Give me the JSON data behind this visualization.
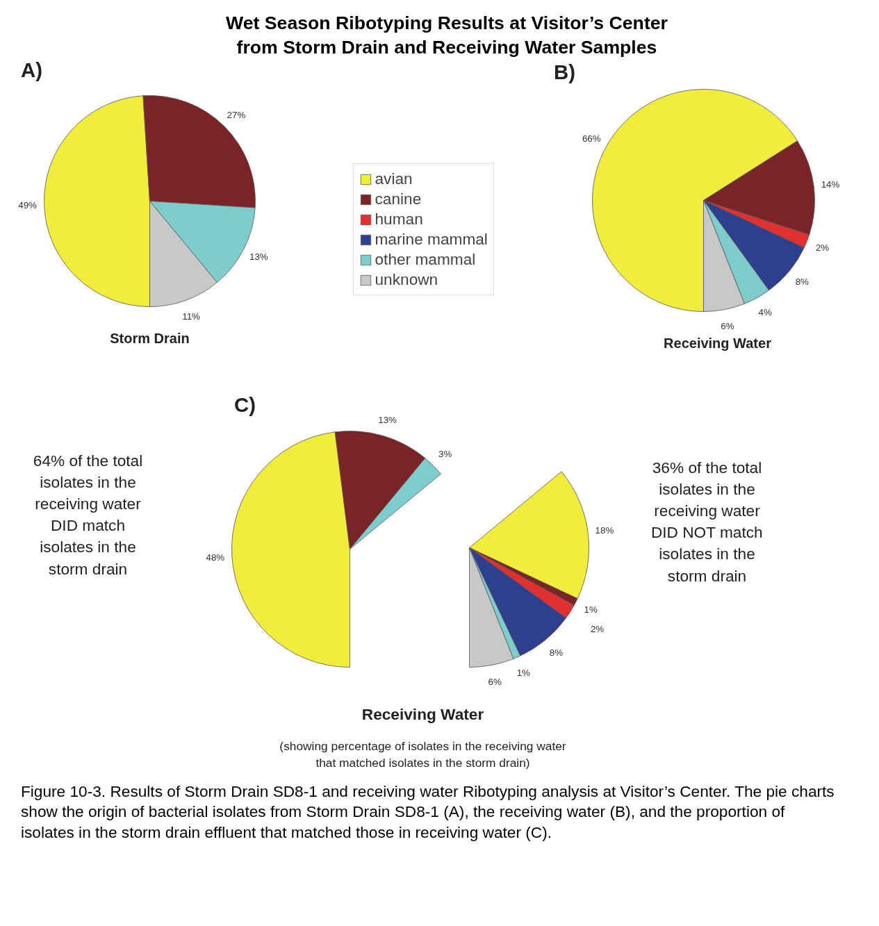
{
  "chart_data": {
    "type": "pie",
    "title": "Wet Season Ribotyping Results at Visitor’s Center\nfrom Storm Drain and Receiving Water Samples",
    "legend": "top",
    "categories": [
      "avian",
      "canine",
      "human",
      "marine mammal",
      "other mammal",
      "unknown"
    ],
    "colors": [
      "#f2ec3c",
      "#7b2428",
      "#e03030",
      "#2e3f8f",
      "#7ecccc",
      "#c8c8c8"
    ],
    "series": [
      {
        "name": "Storm Drain",
        "values": [
          49,
          27,
          null,
          null,
          13,
          11
        ],
        "value_labels": [
          "49%",
          "27%",
          null,
          null,
          "13%",
          "11%"
        ]
      },
      {
        "name": "Receiving Water",
        "values": [
          66,
          14,
          2,
          8,
          4,
          6
        ],
        "value_labels": [
          "66%",
          "14%",
          "2%",
          "8%",
          "4%",
          "6%"
        ]
      },
      {
        "values": [
          48,
          13,
          null,
          null,
          3,
          null
        ],
        "value_labels": [
          "48%",
          "13%",
          null,
          null,
          "3%",
          null
        ]
      },
      {
        "values": [
          18,
          1,
          2,
          8,
          1,
          6
        ],
        "value_labels": [
          "18%",
          "1%",
          "2%",
          "8%",
          "1%",
          "6%"
        ]
      }
    ],
    "annotations": [
      "A)",
      "B)",
      "C)",
      "Receiving Water",
      "64% of the total\nisolates in the\nreceiving water\nDID match\nisolates in the\nstorm drain",
      "36% of the total\nisolates in the\nreceiving water\nDID NOT match\nisolates in the\nstorm drain",
      "(showing percentage of isolates in the receiving water\nthat matched isolates in the storm drain)",
      "Figure 10-3.  Results of Storm Drain SD8-1 and receiving water Ribotyping analysis at Visitor’s Center.  The pie charts show the origin of bacterial isolates from Storm Drain SD8-1 (A), the receiving water (B), and the proportion of isolates in the storm drain effluent that matched those in receiving water (C)."
    ]
  }
}
